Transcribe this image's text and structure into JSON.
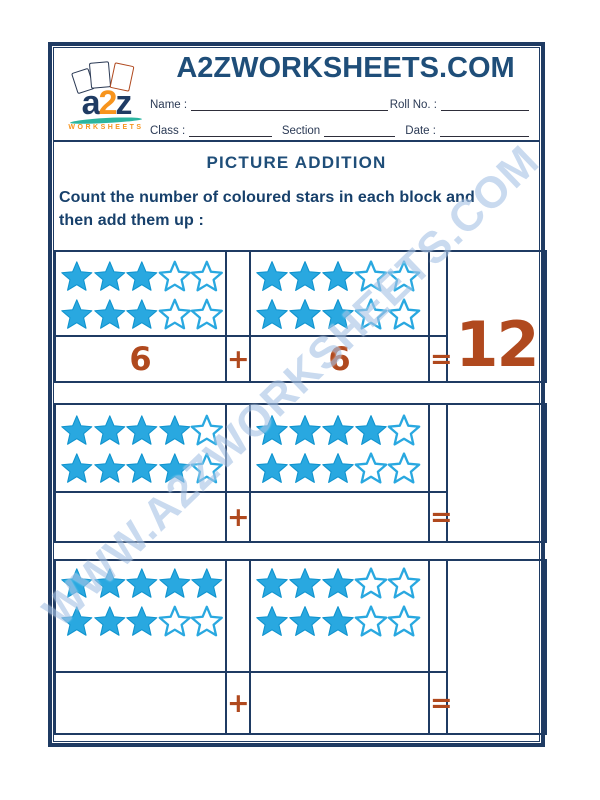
{
  "header": {
    "site_title": "A2ZWORKSHEETS.COM",
    "logo": {
      "a": "a",
      "two": "2",
      "z": "z",
      "sub": "WORKSHEETS"
    },
    "fields": {
      "name_label": "Name :",
      "roll_label": "Roll No. :",
      "class_label": "Class :",
      "section_label": "Section",
      "date_label": "Date :"
    }
  },
  "worksheet": {
    "title": "PICTURE ADDITION",
    "instruction_line1": "Count the number of coloured stars in each block and",
    "instruction_line2": "then add them up :",
    "plus_sign": "+",
    "equals_sign": "=",
    "problems": [
      {
        "block1": {
          "star_rows": [
            [
              1,
              1,
              1,
              0,
              0
            ],
            [
              1,
              1,
              1,
              0,
              0
            ]
          ],
          "filled_count": 6,
          "answer": "6"
        },
        "block2": {
          "star_rows": [
            [
              1,
              1,
              1,
              0,
              0
            ],
            [
              1,
              1,
              1,
              0,
              0
            ]
          ],
          "filled_count": 6,
          "answer": "6"
        },
        "result": "12"
      },
      {
        "block1": {
          "star_rows": [
            [
              1,
              1,
              1,
              1,
              0
            ],
            [
              1,
              1,
              1,
              1,
              0
            ]
          ],
          "filled_count": 8,
          "answer": ""
        },
        "block2": {
          "star_rows": [
            [
              1,
              1,
              1,
              1,
              0
            ],
            [
              1,
              1,
              1,
              0,
              0
            ]
          ],
          "filled_count": 7,
          "answer": ""
        },
        "result": ""
      },
      {
        "block1": {
          "star_rows": [
            [
              1,
              1,
              1,
              1,
              1
            ],
            [
              1,
              1,
              1,
              0,
              0
            ]
          ],
          "filled_count": 8,
          "answer": ""
        },
        "block2": {
          "star_rows": [
            [
              1,
              1,
              1,
              0,
              0
            ],
            [
              1,
              1,
              1,
              0,
              0
            ]
          ],
          "filled_count": 6,
          "answer": ""
        },
        "result": ""
      }
    ]
  },
  "watermark": "WWW.A2ZWORKSHEETS.COM",
  "colors": {
    "border_navy": "#1F3B63",
    "title_navy": "#1F4E79",
    "star_blue": "#29A8E0",
    "star_outline": "#0F93CE",
    "number_brown": "#B0491E",
    "logo_orange": "#F7941D",
    "logo_teal": "#2BB5A0",
    "watermark_blue": "#A9C4E6"
  }
}
